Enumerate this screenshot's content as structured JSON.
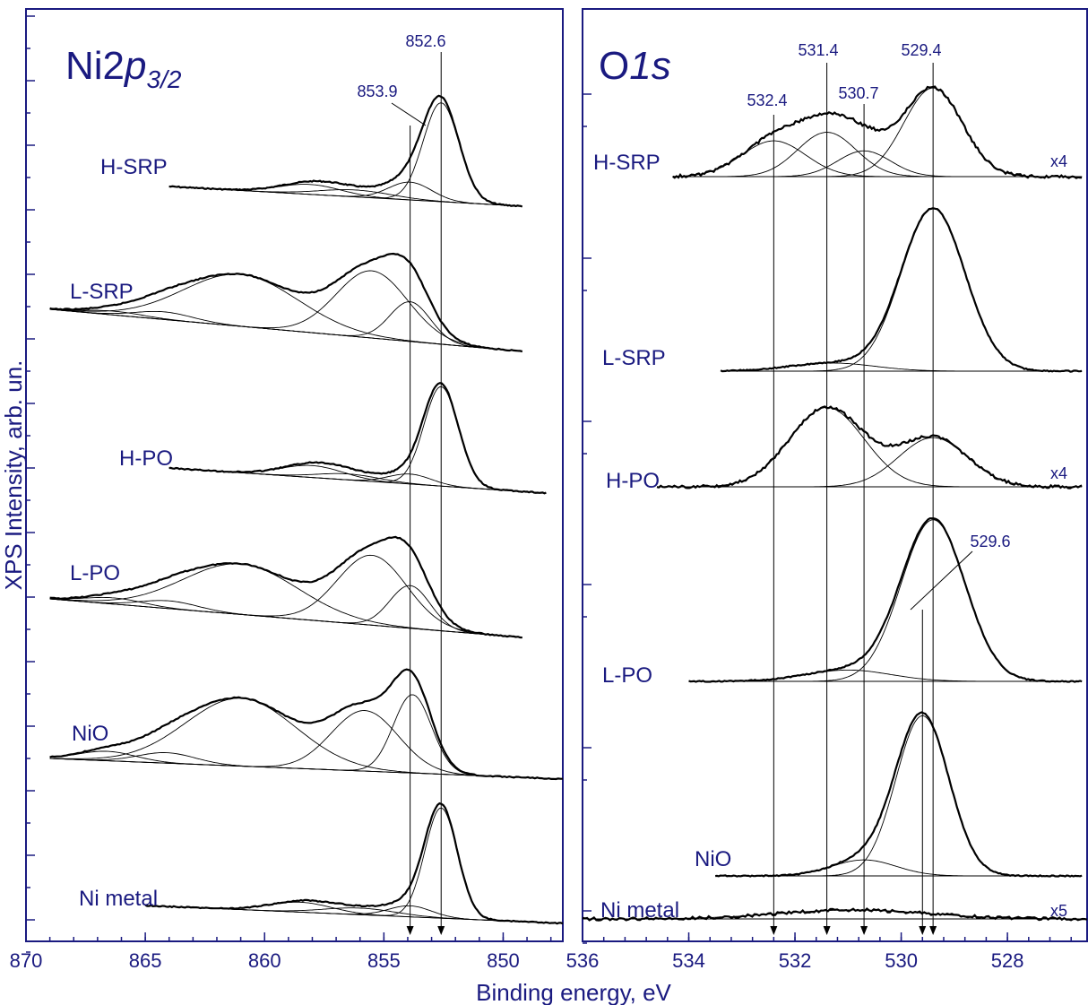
{
  "chart_data": [
    {
      "type": "line",
      "title": "Ni2p3/2",
      "title_main": "Ni2",
      "title_italic": "p",
      "title_sub": "3/2",
      "xlabel": "Binding energy, eV",
      "ylabel": "XPS Intensity, arb. un.",
      "xlim": [
        870,
        847.5
      ],
      "x_reversed": true,
      "x_ticks": [
        870,
        865,
        860,
        855,
        850
      ],
      "y_ticks_labeled": false,
      "markers": [
        {
          "energy": 852.6,
          "label": "852.6"
        },
        {
          "energy": 853.9,
          "label": "853.9"
        }
      ],
      "series": [
        {
          "name": "H-SRP",
          "peaks": [
            [
              852.6,
              1.0,
              0.75
            ],
            [
              853.9,
              0.18,
              0.9
            ],
            [
              856.2,
              0.07,
              1.5
            ],
            [
              858.1,
              0.1,
              1.3
            ]
          ]
        },
        {
          "name": "L-SRP",
          "peaks": [
            [
              853.9,
              0.52,
              0.85
            ],
            [
              855.5,
              0.88,
              1.5
            ],
            [
              861.0,
              0.68,
              2.4
            ],
            [
              864.2,
              0.1,
              1.2
            ],
            [
              866.3,
              0.05,
              1.2
            ]
          ]
        },
        {
          "name": "H-PO",
          "peaks": [
            [
              852.6,
              1.0,
              0.72
            ],
            [
              853.9,
              0.1,
              0.9
            ],
            [
              856.5,
              0.06,
              1.3
            ],
            [
              858.0,
              0.12,
              1.3
            ]
          ]
        },
        {
          "name": "L-PO",
          "peaks": [
            [
              853.9,
              0.55,
              0.85
            ],
            [
              855.5,
              0.9,
              1.45
            ],
            [
              861.0,
              0.65,
              2.4
            ],
            [
              864.0,
              0.1,
              1.2
            ],
            [
              866.3,
              0.08,
              1.2
            ]
          ]
        },
        {
          "name": "NiO",
          "peaks": [
            [
              853.8,
              0.75,
              0.8
            ],
            [
              855.8,
              0.58,
              1.4
            ],
            [
              861.0,
              0.65,
              2.3
            ],
            [
              864.1,
              0.1,
              1.2
            ],
            [
              866.6,
              0.09,
              1.2
            ]
          ]
        },
        {
          "name": "Ni metal",
          "peaks": [
            [
              852.6,
              1.0,
              0.68
            ],
            [
              853.9,
              0.1,
              0.9
            ],
            [
              856.0,
              0.06,
              1.5
            ],
            [
              858.5,
              0.09,
              1.3
            ]
          ]
        }
      ]
    },
    {
      "type": "line",
      "title": "O1s",
      "title_main": "O",
      "title_italic": "1s",
      "xlabel": "Binding energy, eV",
      "xlim": [
        536,
        526.5
      ],
      "x_reversed": true,
      "x_ticks": [
        536,
        534,
        532,
        530,
        528
      ],
      "y_ticks_labeled": false,
      "markers": [
        {
          "energy": 532.4,
          "label": "532.4"
        },
        {
          "energy": 531.4,
          "label": "531.4"
        },
        {
          "energy": 530.7,
          "label": "530.7"
        },
        {
          "energy": 529.4,
          "label": "529.4"
        },
        {
          "energy": 529.6,
          "label": "529.6"
        }
      ],
      "series": [
        {
          "name": "H-SRP",
          "scale": "x4",
          "peaks": [
            [
              529.4,
              0.62,
              0.55
            ],
            [
              530.7,
              0.18,
              0.5
            ],
            [
              531.4,
              0.31,
              0.55
            ],
            [
              532.4,
              0.25,
              0.6
            ]
          ]
        },
        {
          "name": "L-SRP",
          "peaks": [
            [
              529.4,
              1.0,
              0.6
            ],
            [
              531.3,
              0.05,
              0.8
            ]
          ]
        },
        {
          "name": "H-PO",
          "scale": "x4",
          "peaks": [
            [
              529.4,
              0.62,
              0.65
            ],
            [
              531.4,
              1.0,
              0.7
            ]
          ]
        },
        {
          "name": "L-PO",
          "peaks": [
            [
              529.4,
              1.0,
              0.6
            ],
            [
              531.0,
              0.07,
              0.8
            ]
          ]
        },
        {
          "name": "NiO",
          "peaks": [
            [
              529.6,
              1.0,
              0.5
            ],
            [
              530.7,
              0.1,
              0.6
            ]
          ]
        },
        {
          "name": "Ni metal",
          "scale": "x5",
          "peaks": [
            [
              530.9,
              1.0,
              1.4
            ]
          ]
        }
      ]
    }
  ]
}
